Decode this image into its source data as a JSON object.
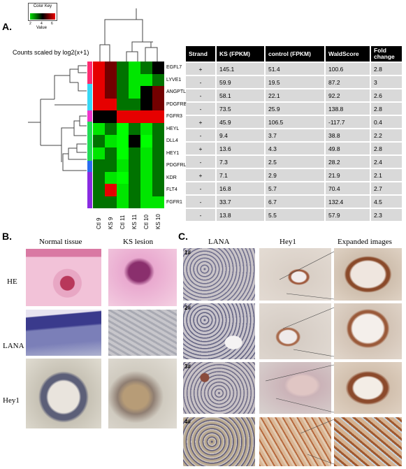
{
  "panel_a": {
    "label": "A.",
    "color_key": {
      "title": "Color Key",
      "ticks": [
        "2",
        "4",
        "6"
      ],
      "xlabel": "Value"
    },
    "counts_caption": "Counts scaled by log2(x+1)",
    "columns": [
      "Ctl 9",
      "KS 9",
      "Ctl 11",
      "KS 11",
      "Ctl 10",
      "KS 10"
    ],
    "genes": [
      "EGFL7",
      "LYVE1",
      "ANGPTL2",
      "PDGFRB",
      "FGFR3",
      "HEYL",
      "DLL4",
      "HEY1",
      "PDGFRL",
      "KDR",
      "FLT4",
      "FGFR1"
    ],
    "table": {
      "headers": [
        "Strand",
        "KS (FPKM)",
        "control (FPKM)",
        "WaldScore",
        "Fold change"
      ],
      "rows": [
        [
          "+",
          "145.1",
          "51.4",
          "100.6",
          "2.8"
        ],
        [
          "-",
          "59.9",
          "19.5",
          "87.2",
          "3"
        ],
        [
          "-",
          "58.1",
          "22.1",
          "92.2",
          "2.6"
        ],
        [
          "-",
          "73.5",
          "25.9",
          "138.8",
          "2.8"
        ],
        [
          "+",
          "45.9",
          "106.5",
          "-117.7",
          "0.4"
        ],
        [
          "-",
          "9.4",
          "3.7",
          "38.8",
          "2.2"
        ],
        [
          "+",
          "13.6",
          "4.3",
          "49.8",
          "2.8"
        ],
        [
          "-",
          "7.3",
          "2.5",
          "28.2",
          "2.4"
        ],
        [
          "+",
          "7.1",
          "2.9",
          "21.9",
          "2.1"
        ],
        [
          "-",
          "16.8",
          "5.7",
          "70.4",
          "2.7"
        ],
        [
          "-",
          "33.7",
          "6.7",
          "132.4",
          "4.5"
        ],
        [
          "-",
          "13.8",
          "5.5",
          "57.9",
          "2.3"
        ]
      ]
    }
  },
  "panel_b": {
    "label": "B.",
    "col_titles": [
      "Normal tissue",
      "KS lesion"
    ],
    "row_tags": [
      "HE",
      "LANA",
      "Hey1"
    ]
  },
  "panel_c": {
    "label": "C.",
    "col_titles": [
      "LANA",
      "Hey1",
      "Expanded images"
    ],
    "row_tags": [
      "1#",
      "2#",
      "3#",
      "4#"
    ]
  },
  "colors": {
    "high": "#e00000",
    "mid": "#000000",
    "low": "#00e000"
  }
}
